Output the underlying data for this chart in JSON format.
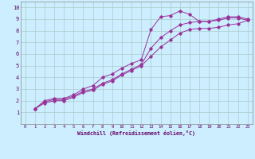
{
  "xlabel": "Windchill (Refroidissement éolien,°C)",
  "bg_color": "#cceeff",
  "grid_color": "#aacccc",
  "line_color": "#993399",
  "xlim": [
    -0.5,
    23.5
  ],
  "ylim": [
    0,
    10.5
  ],
  "xticks": [
    0,
    1,
    2,
    3,
    4,
    5,
    6,
    7,
    8,
    9,
    10,
    11,
    12,
    13,
    14,
    15,
    16,
    17,
    18,
    19,
    20,
    21,
    22,
    23
  ],
  "yticks": [
    1,
    2,
    3,
    4,
    5,
    6,
    7,
    8,
    9,
    10
  ],
  "series1_x": [
    1,
    2,
    3,
    4,
    5,
    6,
    7,
    8,
    9,
    10,
    11,
    12,
    13,
    14,
    15,
    16,
    17,
    18,
    19,
    20,
    21,
    22,
    23
  ],
  "series1_y": [
    1.3,
    2.0,
    2.2,
    2.2,
    2.5,
    3.0,
    3.3,
    4.0,
    4.3,
    4.8,
    5.2,
    5.5,
    8.1,
    9.2,
    9.3,
    9.7,
    9.4,
    8.8,
    8.8,
    9.0,
    9.2,
    9.2,
    9.0
  ],
  "series2_x": [
    1,
    2,
    3,
    4,
    5,
    6,
    7,
    8,
    9,
    10,
    11,
    12,
    13,
    14,
    15,
    16,
    17,
    18,
    19,
    20,
    21,
    22,
    23
  ],
  "series2_y": [
    1.3,
    1.9,
    2.1,
    2.1,
    2.4,
    2.8,
    3.0,
    3.5,
    3.8,
    4.3,
    4.7,
    5.1,
    6.5,
    7.4,
    8.0,
    8.5,
    8.7,
    8.8,
    8.8,
    8.9,
    9.1,
    9.1,
    8.9
  ],
  "series3_x": [
    1,
    2,
    3,
    4,
    5,
    6,
    7,
    8,
    9,
    10,
    11,
    12,
    13,
    14,
    15,
    16,
    17,
    18,
    19,
    20,
    21,
    22,
    23
  ],
  "series3_y": [
    1.3,
    1.8,
    2.0,
    2.0,
    2.3,
    2.7,
    2.9,
    3.4,
    3.7,
    4.2,
    4.6,
    5.0,
    5.8,
    6.6,
    7.2,
    7.8,
    8.1,
    8.2,
    8.2,
    8.3,
    8.5,
    8.6,
    8.9
  ]
}
